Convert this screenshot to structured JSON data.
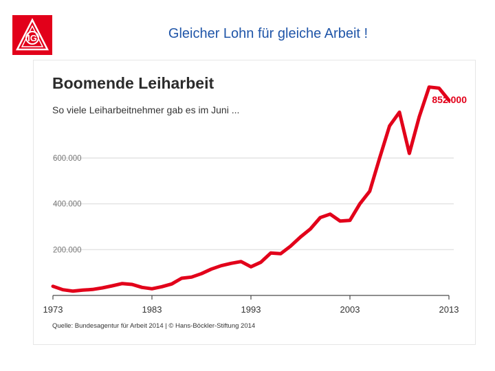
{
  "slide": {
    "title": "Gleicher Lohn für gleiche Arbeit !"
  },
  "logo": {
    "text": "IG",
    "color": "#e2001a"
  },
  "colors": {
    "line": "#e2001a",
    "grid": "#e4e4e4",
    "axis": "#4a4a4a",
    "title": "#1f55a8"
  },
  "chart_data": {
    "type": "line",
    "title": "Boomende Leiharbeit",
    "subtitle": "So viele Leiharbeitnehmer gab es im Juni ...",
    "xlabel": "",
    "ylabel": "",
    "xlim": [
      1973,
      2013
    ],
    "ylim": [
      0,
      900000
    ],
    "grid": true,
    "y_ticks": [
      200000,
      400000,
      600000
    ],
    "y_tick_labels": [
      "200.000",
      "400.000",
      "600.000"
    ],
    "x_ticks": [
      1973,
      1983,
      1993,
      2003,
      2013
    ],
    "x_tick_labels": [
      "1973",
      "1983",
      "1993",
      "2003",
      "2013"
    ],
    "series": [
      {
        "x": [
          1973,
          1974,
          1975,
          1976,
          1977,
          1978,
          1979,
          1980,
          1981,
          1982,
          1983,
          1984,
          1985,
          1986,
          1987,
          1988,
          1989,
          1990,
          1991,
          1992,
          1993,
          1994,
          1995,
          1996,
          1997,
          1998,
          1999,
          2000,
          2001,
          2002,
          2003,
          2004,
          2005,
          2006,
          2007,
          2008,
          2009,
          2010,
          2011,
          2012,
          2013
        ],
        "values": [
          40000,
          25000,
          19000,
          23000,
          26000,
          33000,
          42000,
          52000,
          48000,
          35000,
          29000,
          38000,
          50000,
          75000,
          80000,
          95000,
          115000,
          130000,
          140000,
          148000,
          125000,
          145000,
          185000,
          182000,
          215000,
          255000,
          290000,
          340000,
          355000,
          325000,
          328000,
          400000,
          455000,
          600000,
          740000,
          800000,
          620000,
          780000,
          910000,
          905000,
          852000
        ]
      }
    ],
    "annotations": [
      {
        "x": 2013,
        "y": 852000,
        "text": "852.000"
      }
    ],
    "source": "Quelle: Bundesagentur für Arbeit 2014 | © Hans-Böckler-Stiftung 2014"
  }
}
